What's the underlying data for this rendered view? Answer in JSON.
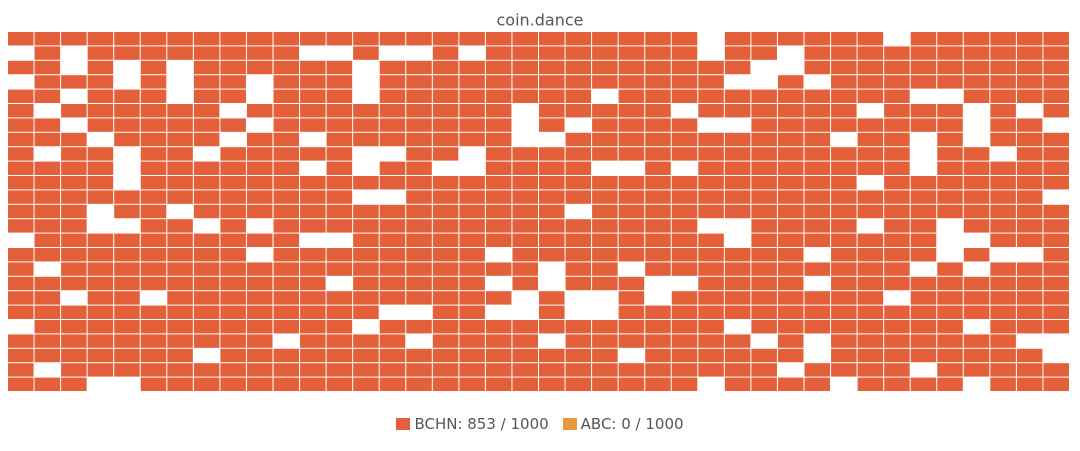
{
  "chart_data": {
    "type": "waffle",
    "title": "coin.dance",
    "series": [
      {
        "name": "BCHN: 853 / 1000",
        "color": "#e4603b"
      },
      {
        "name": "ABC: 0 / 1000",
        "color": "#eb9a3b"
      }
    ],
    "empty_color": "#ffffff",
    "rows": [
      [
        1,
        1,
        1,
        1,
        1,
        1,
        1,
        1,
        1,
        1,
        1,
        1,
        1,
        1,
        1,
        1,
        1,
        1,
        1,
        1,
        1,
        1,
        1,
        1,
        1,
        1,
        0,
        1,
        1,
        1,
        1,
        1,
        1,
        0,
        1,
        1,
        1,
        1,
        1,
        1
      ],
      [
        0,
        1,
        0,
        1,
        1,
        1,
        1,
        1,
        1,
        1,
        1,
        0,
        0,
        1,
        0,
        0,
        1,
        0,
        1,
        1,
        1,
        1,
        1,
        1,
        1,
        1,
        0,
        1,
        1,
        0,
        1,
        1,
        1,
        1,
        1,
        1,
        1,
        1,
        1,
        1
      ],
      [
        1,
        1,
        0,
        1,
        0,
        1,
        0,
        1,
        1,
        1,
        1,
        1,
        1,
        0,
        1,
        1,
        1,
        1,
        1,
        1,
        1,
        1,
        1,
        1,
        1,
        1,
        1,
        1,
        0,
        0,
        1,
        1,
        1,
        1,
        1,
        1,
        1,
        1,
        1,
        1
      ],
      [
        0,
        1,
        1,
        1,
        0,
        1,
        0,
        1,
        1,
        0,
        1,
        1,
        1,
        0,
        1,
        1,
        1,
        1,
        1,
        1,
        1,
        1,
        1,
        1,
        1,
        1,
        1,
        0,
        0,
        1,
        0,
        1,
        1,
        1,
        1,
        1,
        1,
        1,
        1,
        1
      ],
      [
        1,
        1,
        0,
        1,
        1,
        1,
        0,
        1,
        1,
        0,
        1,
        1,
        1,
        0,
        1,
        1,
        1,
        1,
        1,
        1,
        1,
        1,
        0,
        1,
        1,
        1,
        1,
        1,
        1,
        1,
        1,
        1,
        1,
        1,
        0,
        0,
        1,
        1,
        1,
        1
      ],
      [
        1,
        0,
        1,
        1,
        1,
        1,
        1,
        1,
        0,
        1,
        1,
        1,
        1,
        1,
        1,
        1,
        1,
        1,
        1,
        0,
        1,
        1,
        1,
        1,
        1,
        0,
        1,
        1,
        1,
        1,
        1,
        1,
        0,
        1,
        1,
        1,
        0,
        1,
        0,
        1
      ],
      [
        1,
        1,
        0,
        1,
        1,
        1,
        1,
        1,
        1,
        0,
        1,
        1,
        1,
        1,
        1,
        1,
        1,
        1,
        1,
        0,
        1,
        0,
        1,
        1,
        1,
        1,
        0,
        0,
        1,
        1,
        1,
        1,
        1,
        1,
        1,
        1,
        0,
        1,
        1,
        0
      ],
      [
        1,
        1,
        1,
        0,
        1,
        1,
        1,
        1,
        0,
        1,
        1,
        0,
        1,
        1,
        1,
        1,
        1,
        1,
        1,
        0,
        0,
        1,
        1,
        1,
        1,
        1,
        1,
        1,
        1,
        1,
        1,
        0,
        1,
        1,
        0,
        1,
        0,
        1,
        1,
        1
      ],
      [
        1,
        0,
        1,
        1,
        0,
        1,
        1,
        0,
        1,
        1,
        1,
        1,
        1,
        0,
        0,
        1,
        1,
        0,
        1,
        1,
        1,
        1,
        1,
        1,
        1,
        1,
        1,
        1,
        1,
        1,
        1,
        1,
        1,
        1,
        0,
        1,
        1,
        0,
        1,
        1
      ],
      [
        1,
        1,
        1,
        1,
        0,
        1,
        1,
        1,
        1,
        1,
        1,
        0,
        1,
        0,
        1,
        1,
        0,
        0,
        1,
        1,
        1,
        1,
        0,
        0,
        1,
        0,
        1,
        1,
        1,
        1,
        1,
        1,
        1,
        1,
        0,
        1,
        1,
        1,
        1,
        1
      ],
      [
        1,
        1,
        1,
        1,
        0,
        1,
        1,
        1,
        1,
        1,
        1,
        1,
        1,
        1,
        1,
        1,
        1,
        1,
        1,
        1,
        1,
        1,
        1,
        1,
        1,
        1,
        1,
        1,
        1,
        1,
        1,
        1,
        0,
        1,
        1,
        1,
        1,
        1,
        1,
        1
      ],
      [
        1,
        1,
        1,
        1,
        1,
        1,
        1,
        1,
        1,
        1,
        1,
        1,
        1,
        0,
        0,
        1,
        1,
        1,
        1,
        1,
        1,
        1,
        1,
        1,
        1,
        1,
        1,
        1,
        1,
        1,
        1,
        1,
        1,
        1,
        1,
        1,
        1,
        1,
        1,
        0
      ],
      [
        1,
        1,
        1,
        0,
        1,
        1,
        0,
        1,
        1,
        1,
        1,
        1,
        1,
        1,
        1,
        1,
        1,
        1,
        1,
        1,
        1,
        0,
        1,
        1,
        1,
        1,
        1,
        1,
        1,
        1,
        1,
        1,
        1,
        1,
        1,
        1,
        1,
        1,
        1,
        1
      ],
      [
        1,
        1,
        1,
        0,
        0,
        1,
        1,
        0,
        1,
        0,
        1,
        1,
        1,
        1,
        1,
        1,
        1,
        1,
        1,
        1,
        1,
        1,
        1,
        1,
        1,
        1,
        0,
        0,
        1,
        1,
        1,
        1,
        0,
        1,
        1,
        0,
        1,
        1,
        1,
        1
      ],
      [
        0,
        1,
        1,
        1,
        1,
        1,
        1,
        1,
        1,
        1,
        1,
        0,
        0,
        1,
        1,
        1,
        1,
        1,
        1,
        1,
        1,
        1,
        1,
        1,
        1,
        1,
        1,
        0,
        1,
        1,
        1,
        1,
        1,
        1,
        1,
        0,
        0,
        1,
        1,
        1
      ],
      [
        1,
        1,
        1,
        1,
        1,
        1,
        1,
        1,
        1,
        0,
        1,
        1,
        1,
        1,
        1,
        1,
        1,
        1,
        0,
        1,
        1,
        1,
        1,
        1,
        1,
        1,
        1,
        1,
        1,
        1,
        0,
        1,
        1,
        1,
        1,
        0,
        1,
        0,
        0,
        1
      ],
      [
        1,
        0,
        1,
        1,
        1,
        1,
        1,
        1,
        1,
        1,
        1,
        1,
        1,
        1,
        1,
        1,
        1,
        1,
        1,
        1,
        0,
        1,
        1,
        0,
        1,
        1,
        1,
        1,
        1,
        1,
        1,
        1,
        1,
        1,
        0,
        1,
        0,
        1,
        1,
        1
      ],
      [
        1,
        1,
        1,
        1,
        1,
        1,
        1,
        1,
        1,
        1,
        1,
        1,
        0,
        1,
        1,
        1,
        1,
        1,
        0,
        1,
        0,
        1,
        1,
        1,
        0,
        0,
        1,
        1,
        1,
        1,
        0,
        1,
        1,
        1,
        1,
        1,
        1,
        1,
        1,
        1
      ],
      [
        1,
        1,
        0,
        1,
        1,
        0,
        1,
        1,
        1,
        1,
        1,
        1,
        1,
        1,
        1,
        1,
        1,
        1,
        1,
        0,
        1,
        0,
        0,
        1,
        0,
        1,
        1,
        1,
        1,
        1,
        1,
        1,
        1,
        0,
        1,
        1,
        1,
        1,
        1,
        1
      ],
      [
        1,
        1,
        1,
        1,
        1,
        1,
        1,
        1,
        1,
        1,
        1,
        1,
        1,
        1,
        0,
        0,
        1,
        1,
        0,
        0,
        1,
        0,
        0,
        1,
        1,
        1,
        1,
        1,
        1,
        1,
        1,
        1,
        1,
        1,
        1,
        1,
        1,
        1,
        1,
        1
      ],
      [
        0,
        1,
        1,
        1,
        1,
        1,
        1,
        1,
        1,
        1,
        1,
        1,
        1,
        0,
        1,
        1,
        1,
        1,
        1,
        1,
        1,
        1,
        1,
        1,
        1,
        1,
        1,
        0,
        1,
        1,
        1,
        1,
        1,
        1,
        1,
        1,
        0,
        1,
        1,
        1
      ],
      [
        1,
        1,
        1,
        1,
        1,
        1,
        1,
        1,
        1,
        1,
        0,
        1,
        1,
        1,
        1,
        0,
        1,
        1,
        1,
        1,
        0,
        1,
        1,
        1,
        1,
        1,
        1,
        1,
        0,
        1,
        0,
        1,
        1,
        1,
        1,
        1,
        1,
        1,
        0,
        0
      ],
      [
        1,
        1,
        1,
        1,
        1,
        1,
        1,
        0,
        1,
        1,
        1,
        1,
        1,
        1,
        1,
        1,
        1,
        1,
        1,
        1,
        1,
        1,
        1,
        0,
        1,
        1,
        1,
        1,
        1,
        1,
        0,
        1,
        1,
        1,
        1,
        1,
        1,
        1,
        1,
        0
      ],
      [
        1,
        0,
        1,
        1,
        1,
        1,
        1,
        1,
        1,
        1,
        1,
        1,
        1,
        1,
        1,
        1,
        1,
        1,
        1,
        1,
        1,
        1,
        1,
        1,
        1,
        1,
        1,
        1,
        1,
        0,
        1,
        1,
        1,
        1,
        0,
        1,
        1,
        1,
        1,
        1
      ],
      [
        1,
        1,
        1,
        0,
        0,
        1,
        1,
        1,
        1,
        1,
        1,
        1,
        1,
        1,
        1,
        1,
        1,
        1,
        1,
        1,
        1,
        1,
        1,
        1,
        1,
        1,
        0,
        1,
        1,
        1,
        1,
        0,
        1,
        1,
        1,
        1,
        0,
        1,
        1,
        1
      ]
    ]
  }
}
